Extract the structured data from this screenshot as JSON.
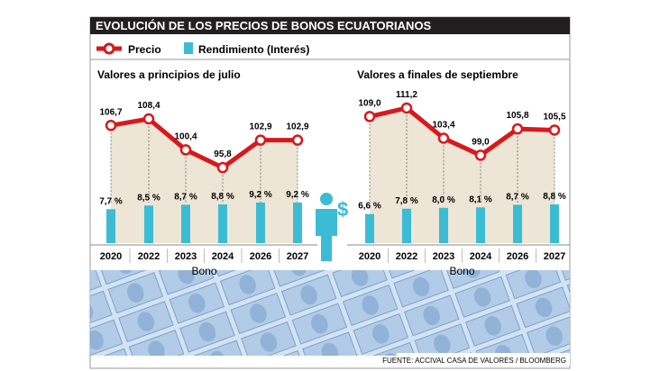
{
  "title": "EVOLUCIÓN DE LOS PRECIOS DE BONOS ECUATORIANOS",
  "legend": {
    "price": "Precio",
    "yield": "Rendimiento (Interés)"
  },
  "source": "FUENTE: ACCIVAL CASA DE VALORES / BLOOMBERG",
  "colors": {
    "price": "#d7191c",
    "yield": "#3cbcd4",
    "area": "#ede5d5",
    "title_bg": "#231f20"
  },
  "chart_data": [
    {
      "type": "line+bar",
      "title": "Valores a principios de julio",
      "xlabel": "Bono",
      "categories": [
        "2020",
        "2022",
        "2023",
        "2024",
        "2026",
        "2027"
      ],
      "series": [
        {
          "name": "Precio",
          "values": [
            106.7,
            108.4,
            100.4,
            95.8,
            102.9,
            102.9
          ],
          "labels": [
            "106,7",
            "108,4",
            "100,4",
            "95,8",
            "102,9",
            "102,9"
          ]
        },
        {
          "name": "Rendimiento (Interés)",
          "values": [
            7.7,
            8.5,
            8.7,
            8.8,
            9.2,
            9.2
          ],
          "labels": [
            "7,7 %",
            "8,5 %",
            "8,7 %",
            "8,8 %",
            "9,2 %",
            "9,2 %"
          ]
        }
      ]
    },
    {
      "type": "line+bar",
      "title": "Valores a finales de septiembre",
      "xlabel": "Bono",
      "categories": [
        "2020",
        "2022",
        "2023",
        "2024",
        "2026",
        "2027"
      ],
      "series": [
        {
          "name": "Precio",
          "values": [
            109.0,
            111.2,
            103.4,
            99.0,
            105.8,
            105.5
          ],
          "labels": [
            "109,0",
            "111,2",
            "103,4",
            "99,0",
            "105,8",
            "105,5"
          ]
        },
        {
          "name": "Rendimiento (Interés)",
          "values": [
            6.6,
            7.8,
            8.0,
            8.1,
            8.7,
            8.8
          ],
          "labels": [
            "6,6 %",
            "7,8 %",
            "8,0 %",
            "8,1 %",
            "8,7 %",
            "8,8 %"
          ]
        }
      ]
    }
  ]
}
